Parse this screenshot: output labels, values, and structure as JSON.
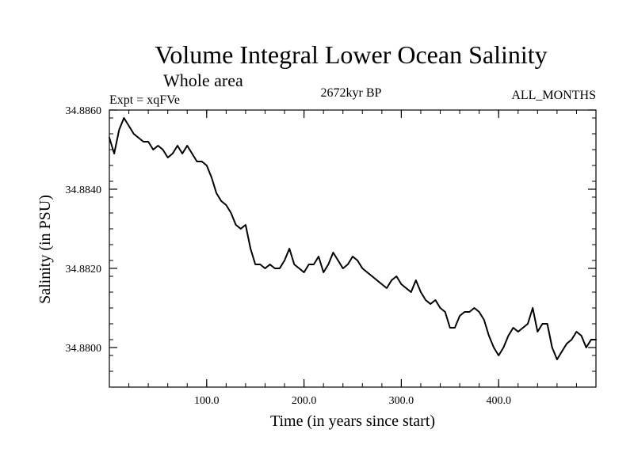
{
  "chart_data": {
    "type": "line",
    "title": "Volume Integral Lower Ocean Salinity",
    "subtitle": "Whole area",
    "experiment_label": "Expt = xqFVe",
    "period_label": "2672kyr BP",
    "months_label": "ALL_MONTHS",
    "xlabel": "Time (in years since start)",
    "ylabel": "Salinity (in PSU)",
    "xlim": [
      0,
      500
    ],
    "ylim": [
      34.879,
      34.886
    ],
    "x_ticks": [
      100,
      200,
      300,
      400
    ],
    "x_tick_labels": [
      "100.0",
      "200.0",
      "300.0",
      "400.0"
    ],
    "y_ticks": [
      34.88,
      34.882,
      34.884,
      34.886
    ],
    "y_tick_labels": [
      "34.8800",
      "34.8820",
      "34.8840",
      "34.8860"
    ],
    "x_minor_step": 20,
    "y_minor_step": 0.0004,
    "series": [
      {
        "name": "Lower ocean salinity",
        "color": "#000000",
        "x": [
          0,
          5,
          10,
          15,
          20,
          25,
          30,
          35,
          40,
          45,
          50,
          55,
          60,
          65,
          70,
          75,
          80,
          85,
          90,
          95,
          100,
          105,
          110,
          115,
          120,
          125,
          130,
          135,
          140,
          145,
          150,
          155,
          160,
          165,
          170,
          175,
          180,
          185,
          190,
          195,
          200,
          205,
          210,
          215,
          220,
          225,
          230,
          235,
          240,
          245,
          250,
          255,
          260,
          265,
          270,
          275,
          280,
          285,
          290,
          295,
          300,
          305,
          310,
          315,
          320,
          325,
          330,
          335,
          340,
          345,
          350,
          355,
          360,
          365,
          370,
          375,
          380,
          385,
          390,
          395,
          400,
          405,
          410,
          415,
          420,
          425,
          430,
          435,
          440,
          445,
          450,
          455,
          460,
          465,
          470,
          475,
          480,
          485,
          490,
          495,
          500
        ],
        "y": [
          34.8853,
          34.8849,
          34.8855,
          34.8858,
          34.8856,
          34.8854,
          34.8853,
          34.8852,
          34.8852,
          34.885,
          34.8851,
          34.885,
          34.8848,
          34.8849,
          34.8851,
          34.8849,
          34.8851,
          34.8849,
          34.8847,
          34.8847,
          34.8846,
          34.8843,
          34.8839,
          34.8837,
          34.8836,
          34.8834,
          34.8831,
          34.883,
          34.8831,
          34.8825,
          34.8821,
          34.8821,
          34.882,
          34.8821,
          34.882,
          34.882,
          34.8822,
          34.8825,
          34.8821,
          34.882,
          34.8819,
          34.8821,
          34.8821,
          34.8823,
          34.8819,
          34.8821,
          34.8824,
          34.8822,
          34.882,
          34.8821,
          34.8823,
          34.8822,
          34.882,
          34.8819,
          34.8818,
          34.8817,
          34.8816,
          34.8815,
          34.8817,
          34.8818,
          34.8816,
          34.8815,
          34.8814,
          34.8817,
          34.8814,
          34.8812,
          34.8811,
          34.8812,
          34.881,
          34.8809,
          34.8805,
          34.8805,
          34.8808,
          34.8809,
          34.8809,
          34.881,
          34.8809,
          34.8807,
          34.8803,
          34.88,
          34.8798,
          34.88,
          34.8803,
          34.8805,
          34.8804,
          34.8805,
          34.8806,
          34.881,
          34.8804,
          34.8806,
          34.8806,
          34.88,
          34.8797,
          34.8799,
          34.8801,
          34.8802,
          34.8804,
          34.8803,
          34.88,
          34.8802,
          34.8802
        ]
      }
    ]
  }
}
